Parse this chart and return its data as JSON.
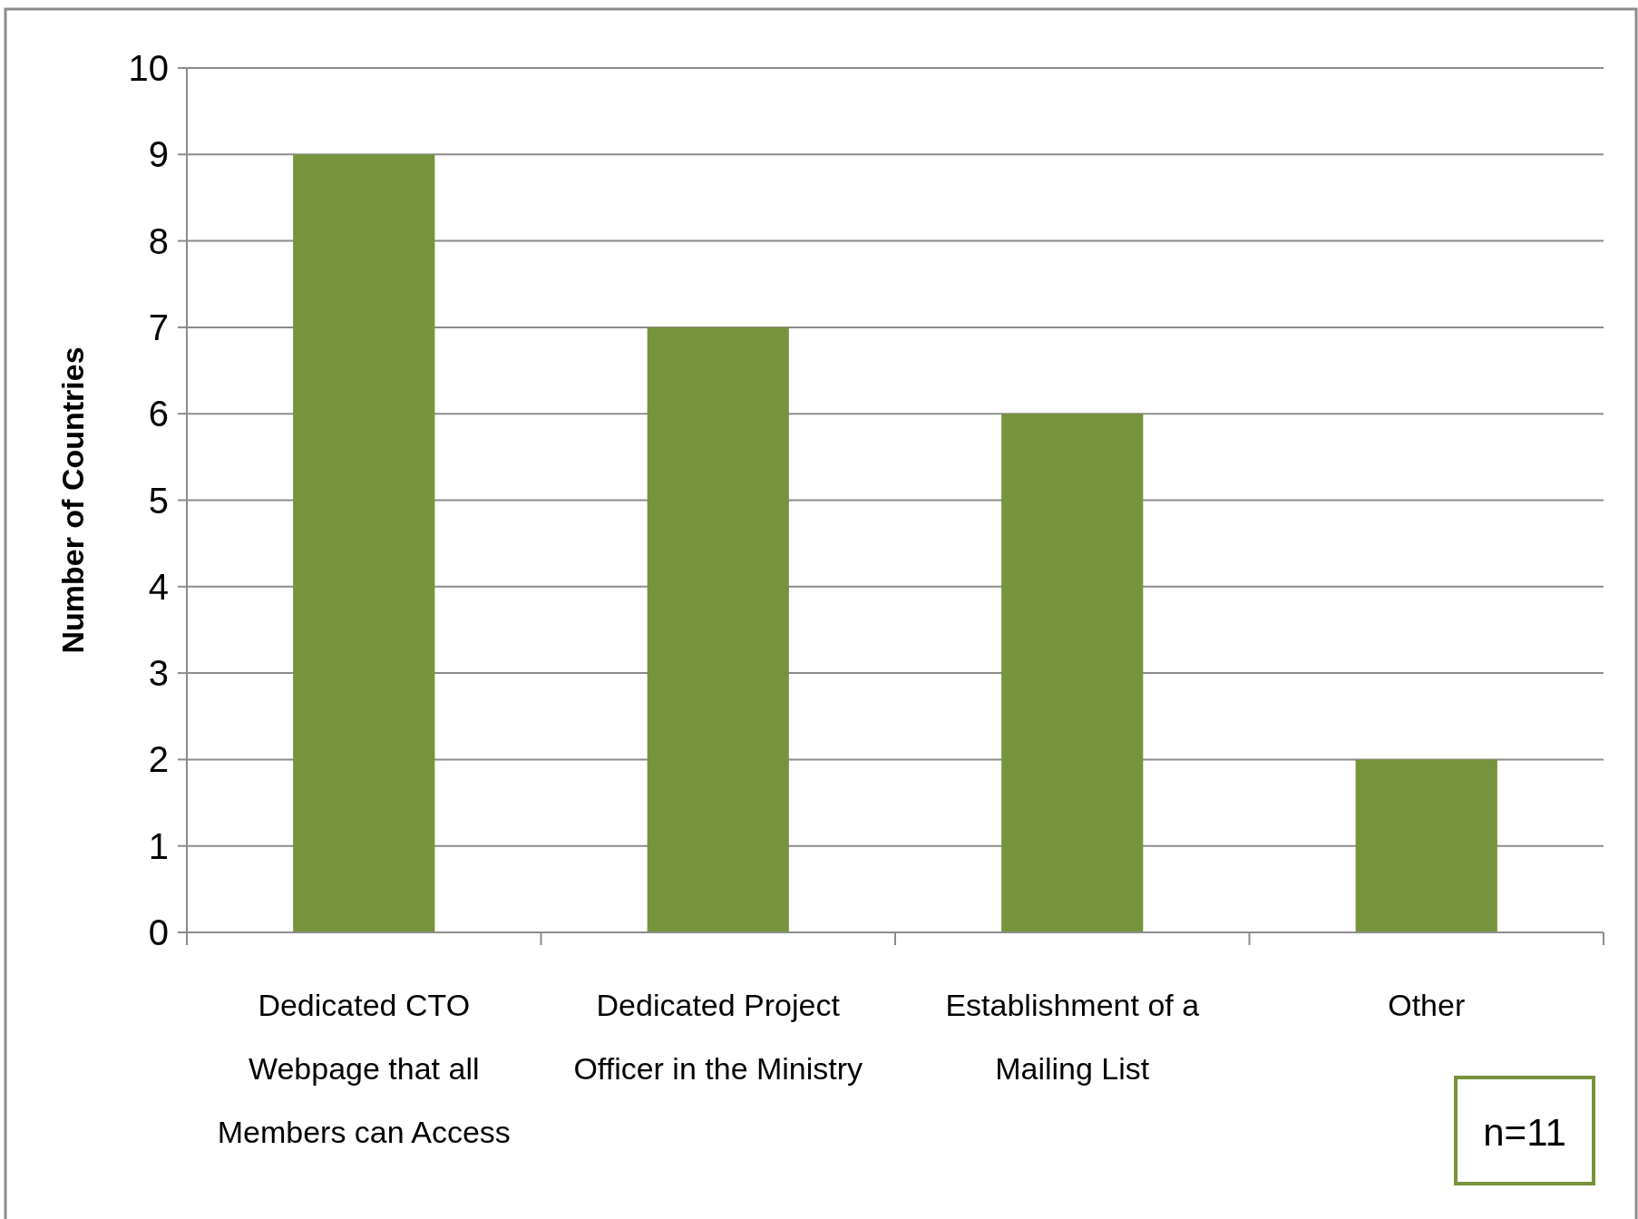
{
  "chart_data": {
    "type": "bar",
    "ylabel": "Number of Countries",
    "categories": [
      "Dedicated CTO Webpage that all Members can Access",
      "Dedicated Project Officer in the Ministry",
      "Establishment of a Mailing List",
      "Other"
    ],
    "values": [
      9,
      7,
      6,
      2
    ],
    "color": "#77933c",
    "ylim": [
      0,
      10
    ],
    "yticks": [
      0,
      1,
      2,
      3,
      4,
      5,
      6,
      7,
      8,
      9,
      10
    ],
    "grid": "y",
    "annotations": [
      "n=11"
    ]
  }
}
